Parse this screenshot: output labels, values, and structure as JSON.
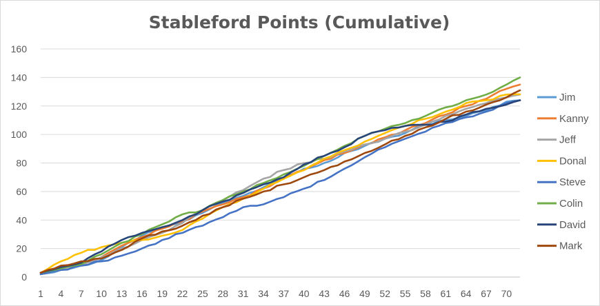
{
  "chart_data": {
    "type": "line",
    "title": "Stableford Points (Cumulative)",
    "xlabel": "",
    "ylabel": "",
    "ylim": [
      0,
      160
    ],
    "yticks": [
      0,
      20,
      40,
      60,
      80,
      100,
      120,
      140,
      160
    ],
    "xlim": [
      1,
      72
    ],
    "xticks": [
      1,
      4,
      7,
      10,
      13,
      16,
      19,
      22,
      25,
      28,
      31,
      34,
      37,
      40,
      43,
      46,
      49,
      52,
      55,
      58,
      61,
      64,
      67,
      70
    ],
    "grid": "horizontal",
    "legend_position": "right",
    "series": [
      {
        "name": "Jim",
        "color": "#5b9bd5",
        "keypoints": [
          [
            1,
            2
          ],
          [
            4,
            5
          ],
          [
            7,
            8
          ],
          [
            10,
            12
          ],
          [
            13,
            21
          ],
          [
            16,
            29
          ],
          [
            19,
            35
          ],
          [
            22,
            39
          ],
          [
            25,
            45
          ],
          [
            28,
            52
          ],
          [
            31,
            57
          ],
          [
            34,
            63
          ],
          [
            37,
            70
          ],
          [
            40,
            76
          ],
          [
            43,
            80
          ],
          [
            46,
            87
          ],
          [
            49,
            92
          ],
          [
            52,
            97
          ],
          [
            55,
            101
          ],
          [
            58,
            107
          ],
          [
            61,
            110
          ],
          [
            64,
            113
          ],
          [
            67,
            117
          ],
          [
            70,
            123
          ],
          [
            72,
            124
          ]
        ]
      },
      {
        "name": "Kanny",
        "color": "#ed7d31",
        "keypoints": [
          [
            1,
            3
          ],
          [
            4,
            6
          ],
          [
            7,
            9
          ],
          [
            10,
            14
          ],
          [
            13,
            22
          ],
          [
            16,
            28
          ],
          [
            19,
            34
          ],
          [
            22,
            39
          ],
          [
            25,
            46
          ],
          [
            28,
            51
          ],
          [
            31,
            56
          ],
          [
            34,
            62
          ],
          [
            37,
            69
          ],
          [
            40,
            75
          ],
          [
            43,
            82
          ],
          [
            46,
            87
          ],
          [
            49,
            93
          ],
          [
            52,
            98
          ],
          [
            55,
            103
          ],
          [
            58,
            108
          ],
          [
            61,
            114
          ],
          [
            64,
            120
          ],
          [
            67,
            125
          ],
          [
            70,
            132
          ],
          [
            72,
            135
          ]
        ]
      },
      {
        "name": "Jeff",
        "color": "#a5a5a5",
        "keypoints": [
          [
            1,
            2
          ],
          [
            4,
            5
          ],
          [
            7,
            8
          ],
          [
            10,
            14
          ],
          [
            13,
            20
          ],
          [
            16,
            26
          ],
          [
            19,
            31
          ],
          [
            22,
            38
          ],
          [
            25,
            47
          ],
          [
            28,
            54
          ],
          [
            31,
            61
          ],
          [
            34,
            69
          ],
          [
            37,
            75
          ],
          [
            40,
            80
          ],
          [
            43,
            83
          ],
          [
            46,
            88
          ],
          [
            49,
            93
          ],
          [
            52,
            97
          ],
          [
            55,
            102
          ],
          [
            58,
            107
          ],
          [
            61,
            113
          ],
          [
            64,
            118
          ],
          [
            67,
            122
          ],
          [
            70,
            126
          ],
          [
            72,
            128
          ]
        ]
      },
      {
        "name": "Donal",
        "color": "#ffc000",
        "keypoints": [
          [
            1,
            3
          ],
          [
            4,
            11
          ],
          [
            7,
            17
          ],
          [
            10,
            21
          ],
          [
            13,
            24
          ],
          [
            16,
            26
          ],
          [
            19,
            29
          ],
          [
            22,
            33
          ],
          [
            25,
            41
          ],
          [
            28,
            49
          ],
          [
            31,
            55
          ],
          [
            34,
            62
          ],
          [
            37,
            69
          ],
          [
            40,
            75
          ],
          [
            43,
            83
          ],
          [
            46,
            89
          ],
          [
            49,
            95
          ],
          [
            52,
            101
          ],
          [
            55,
            106
          ],
          [
            58,
            111
          ],
          [
            61,
            116
          ],
          [
            64,
            122
          ],
          [
            67,
            124
          ],
          [
            70,
            128
          ],
          [
            72,
            128
          ]
        ]
      },
      {
        "name": "Steve",
        "color": "#4472c4",
        "keypoints": [
          [
            1,
            2
          ],
          [
            4,
            5
          ],
          [
            7,
            8
          ],
          [
            10,
            11
          ],
          [
            13,
            15
          ],
          [
            16,
            20
          ],
          [
            19,
            26
          ],
          [
            22,
            31
          ],
          [
            25,
            36
          ],
          [
            28,
            42
          ],
          [
            31,
            49
          ],
          [
            34,
            51
          ],
          [
            37,
            56
          ],
          [
            40,
            62
          ],
          [
            43,
            68
          ],
          [
            46,
            76
          ],
          [
            49,
            84
          ],
          [
            52,
            91
          ],
          [
            55,
            97
          ],
          [
            58,
            102
          ],
          [
            61,
            108
          ],
          [
            64,
            112
          ],
          [
            67,
            116
          ],
          [
            70,
            122
          ],
          [
            72,
            124
          ]
        ]
      },
      {
        "name": "Colin",
        "color": "#70ad47",
        "keypoints": [
          [
            1,
            3
          ],
          [
            4,
            6
          ],
          [
            7,
            9
          ],
          [
            10,
            16
          ],
          [
            13,
            24
          ],
          [
            16,
            30
          ],
          [
            19,
            37
          ],
          [
            22,
            44
          ],
          [
            25,
            47
          ],
          [
            28,
            54
          ],
          [
            31,
            60
          ],
          [
            34,
            66
          ],
          [
            37,
            72
          ],
          [
            40,
            78
          ],
          [
            43,
            85
          ],
          [
            46,
            92
          ],
          [
            49,
            99
          ],
          [
            52,
            104
          ],
          [
            55,
            108
          ],
          [
            58,
            113
          ],
          [
            61,
            119
          ],
          [
            64,
            124
          ],
          [
            67,
            128
          ],
          [
            70,
            135
          ],
          [
            72,
            140
          ]
        ]
      },
      {
        "name": "David",
        "color": "#264478",
        "keypoints": [
          [
            1,
            3
          ],
          [
            4,
            7
          ],
          [
            7,
            10
          ],
          [
            10,
            18
          ],
          [
            13,
            26
          ],
          [
            16,
            31
          ],
          [
            19,
            35
          ],
          [
            22,
            40
          ],
          [
            25,
            47
          ],
          [
            28,
            53
          ],
          [
            31,
            59
          ],
          [
            34,
            65
          ],
          [
            37,
            70
          ],
          [
            40,
            79
          ],
          [
            43,
            85
          ],
          [
            46,
            91
          ],
          [
            49,
            99
          ],
          [
            52,
            103
          ],
          [
            55,
            106
          ],
          [
            58,
            106
          ],
          [
            61,
            109
          ],
          [
            64,
            114
          ],
          [
            67,
            118
          ],
          [
            70,
            121
          ],
          [
            72,
            124
          ]
        ]
      },
      {
        "name": "Mark",
        "color": "#9e480e",
        "keypoints": [
          [
            1,
            3
          ],
          [
            4,
            8
          ],
          [
            7,
            11
          ],
          [
            10,
            13
          ],
          [
            13,
            19
          ],
          [
            16,
            27
          ],
          [
            19,
            32
          ],
          [
            22,
            36
          ],
          [
            25,
            43
          ],
          [
            28,
            49
          ],
          [
            31,
            55
          ],
          [
            34,
            60
          ],
          [
            37,
            65
          ],
          [
            40,
            70
          ],
          [
            43,
            75
          ],
          [
            46,
            81
          ],
          [
            49,
            87
          ],
          [
            52,
            93
          ],
          [
            55,
            99
          ],
          [
            58,
            105
          ],
          [
            61,
            111
          ],
          [
            64,
            116
          ],
          [
            67,
            121
          ],
          [
            70,
            126
          ],
          [
            72,
            131
          ]
        ]
      }
    ]
  }
}
